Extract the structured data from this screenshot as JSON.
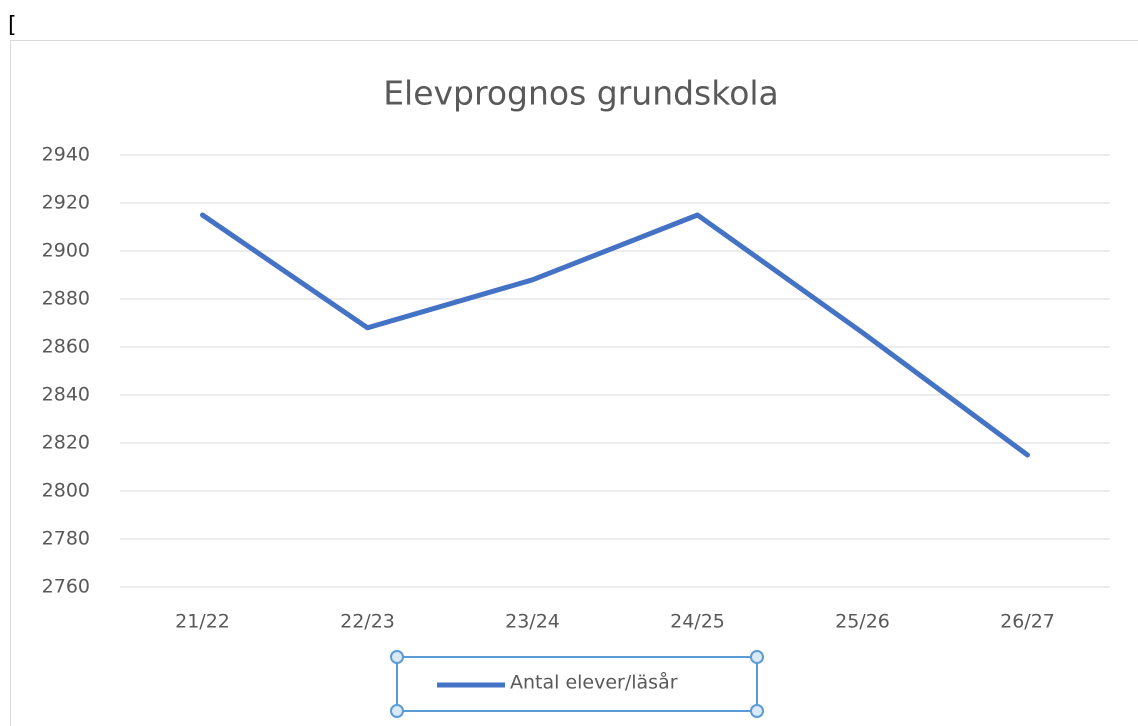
{
  "page_text": "[",
  "chart_data": {
    "type": "line",
    "title": "Elevprognos grundskola",
    "categories": [
      "21/22",
      "22/23",
      "23/24",
      "24/25",
      "25/26",
      "26/27"
    ],
    "series": [
      {
        "name": "Antal elever/läsår",
        "color": "#4472c4",
        "values": [
          2915,
          2868,
          2888,
          2915,
          2866,
          2815
        ]
      }
    ],
    "ylim": [
      2760,
      2940
    ],
    "yticks": [
      2760,
      2780,
      2800,
      2820,
      2840,
      2860,
      2880,
      2900,
      2920,
      2940
    ],
    "grid": true,
    "legend": "bottom"
  }
}
